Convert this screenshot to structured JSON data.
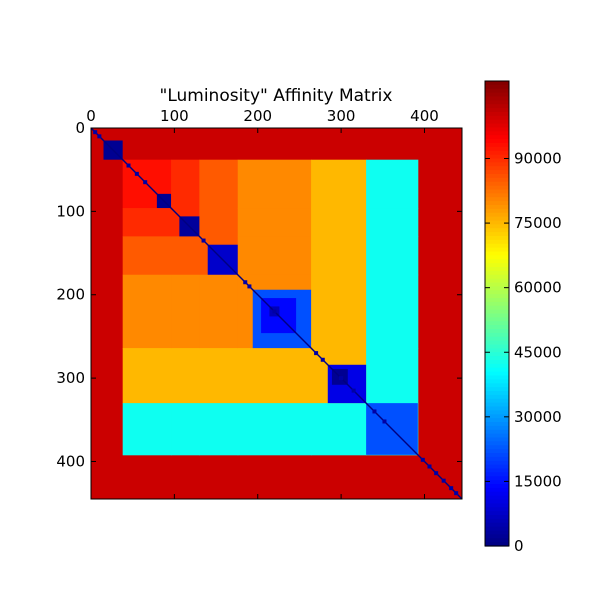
{
  "chart_data": [
    {
      "type": "heatmap",
      "title": "\"Luminosity\" Affinity Matrix",
      "xlabel": "",
      "ylabel": "",
      "xlim": [
        0,
        445
      ],
      "ylim": [
        445,
        0
      ],
      "x_ticks": [
        "0",
        "100",
        "200",
        "300",
        "400"
      ],
      "x_tick_values": [
        0,
        100,
        200,
        300,
        400
      ],
      "y_ticks": [
        "0",
        "100",
        "200",
        "300",
        "400"
      ],
      "y_tick_values": [
        0,
        100,
        200,
        300,
        400
      ],
      "x_axis_position": "top",
      "colormap": "jet",
      "grid": false,
      "matrix_size": 445,
      "background_value": 100000,
      "boundaries": [
        0,
        38,
        96,
        130,
        176,
        264,
        330,
        392,
        445
      ],
      "band_values": [
        100000,
        93000,
        90000,
        85000,
        80000,
        75000,
        42000,
        22000
      ],
      "diagonal_blocks": [
        {
          "start": 15,
          "end": 38,
          "value": 2000
        },
        {
          "start": 79,
          "end": 96,
          "value": 2000
        },
        {
          "start": 106,
          "end": 130,
          "value": 3000
        },
        {
          "start": 140,
          "end": 176,
          "value": 8000
        },
        {
          "start": 194,
          "end": 264,
          "value": 22000
        },
        {
          "start": 204,
          "end": 246,
          "value": 14000
        },
        {
          "start": 214,
          "end": 226,
          "value": 6000
        },
        {
          "start": 284,
          "end": 330,
          "value": 11000
        },
        {
          "start": 289,
          "end": 308,
          "value": 2000
        },
        {
          "start": 330,
          "end": 392,
          "value": 22000
        }
      ],
      "diagonal_value": 0
    },
    {
      "type": "colorbar",
      "range": [
        0,
        108000
      ],
      "tick_labels": [
        "0",
        "15000",
        "30000",
        "45000",
        "60000",
        "75000",
        "90000"
      ],
      "tick_values": [
        0,
        15000,
        30000,
        45000,
        60000,
        75000,
        90000
      ]
    }
  ]
}
